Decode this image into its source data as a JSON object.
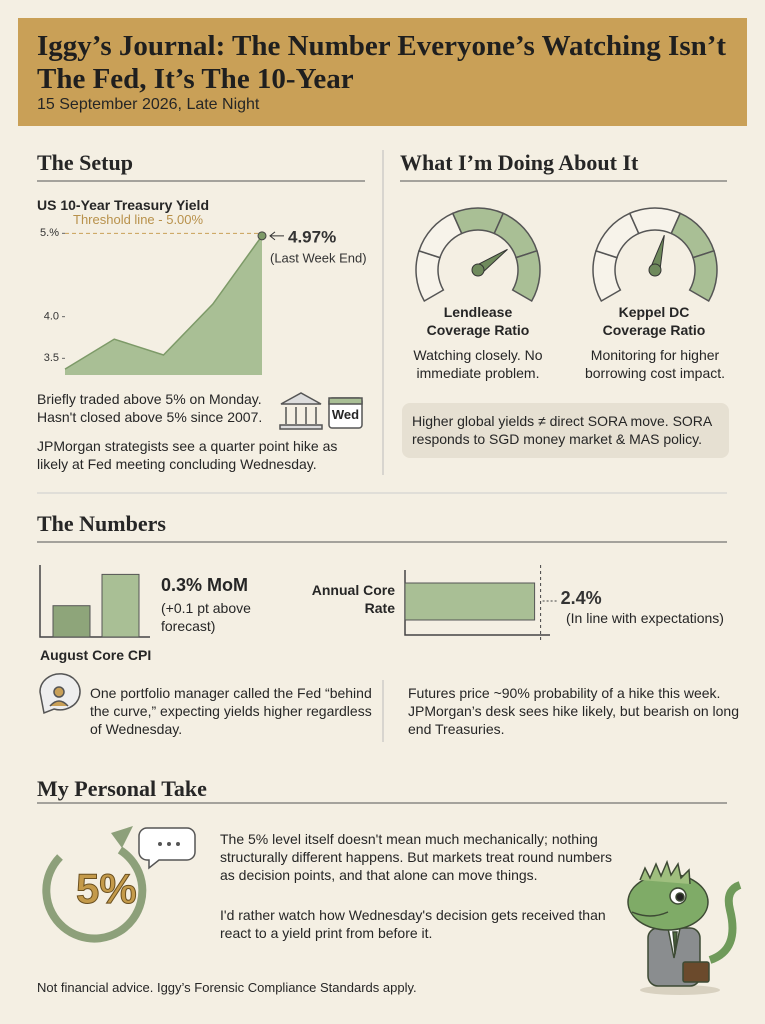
{
  "header": {
    "title": "Iggy’s Journal: The Number Everyone’s Watching Isn’t The Fed, It’s The 10-Year",
    "date": "15 September 2026, Late Night"
  },
  "setup": {
    "heading": "The Setup",
    "chart_data": {
      "type": "area",
      "title": "US 10-Year Treasury Yield",
      "categories": [
        null,
        null,
        null,
        null,
        null
      ],
      "values": [
        3.37,
        3.73,
        3.54,
        4.15,
        4.97
      ],
      "color": "#a9bf95",
      "ylim": [
        3.3,
        5.1
      ],
      "yticks": [
        3.5,
        {
          "value": 4,
          "label": "4.0"
        },
        {
          "value": 5,
          "label": "5.%"
        }
      ],
      "threshold": {
        "value": 5,
        "label": "Threshold line - 5.00%"
      },
      "callout": {
        "label": "4.97%",
        "note": "(Last Week End)"
      }
    },
    "notes": [
      "Briefly traded above 5% on Monday. Hasn't closed above 5% since 2007.",
      "JPMorgan strategists see a quarter point hike as likely at Fed meeting concluding Wednesday."
    ],
    "icon_label": "Wed"
  },
  "actions": {
    "heading": "What I’m Doing About It",
    "gauges": [
      {
        "label": "Lendlease Coverage Ratio",
        "note": "Watching closely. No immediate problem."
      },
      {
        "label": "Keppel DC Coverage Ratio",
        "note": "Monitoring for higher borrowing cost impact."
      }
    ],
    "callout": "Higher global yields ≠ direct SORA move. SORA responds to SGD money market & MAS policy."
  },
  "numbers": {
    "heading": "The Numbers",
    "cpi": {
      "type": "bar",
      "title": "August Core CPI",
      "categories": [
        null,
        null
      ],
      "values": [
        0.2,
        0.3
      ],
      "ylim": [
        0.1,
        0.33
      ],
      "value_label": "0.3% MoM",
      "note": "(+0.1 pt above forecast)"
    },
    "core": {
      "type": "hbar",
      "categories": [
        "Annual Core Rate"
      ],
      "values": [
        2.4
      ],
      "xlim": [
        0,
        2.5
      ],
      "value_labels": [
        "2.4%"
      ],
      "note": "(In line with expectations)"
    },
    "quotes": [
      "One portfolio manager called the Fed “behind the curve,” expecting yields higher regardless of Wednesday.",
      "Futures price ~90% probability of a hike this week. JPMorgan’s desk sees hike likely, but bearish on long end Treasuries."
    ]
  },
  "take": {
    "heading": "My Personal Take",
    "icon_label": "5%",
    "paragraphs": [
      "The 5% level itself doesn't mean much mechanically; nothing structurally different happens. But markets treat round numbers as decision points, and that alone can move things.",
      "I'd rather watch how Wednesday's decision gets received than react to a yield print from before it."
    ]
  },
  "footer": "Not financial advice. Iggy’s Forensic Compliance Standards apply."
}
